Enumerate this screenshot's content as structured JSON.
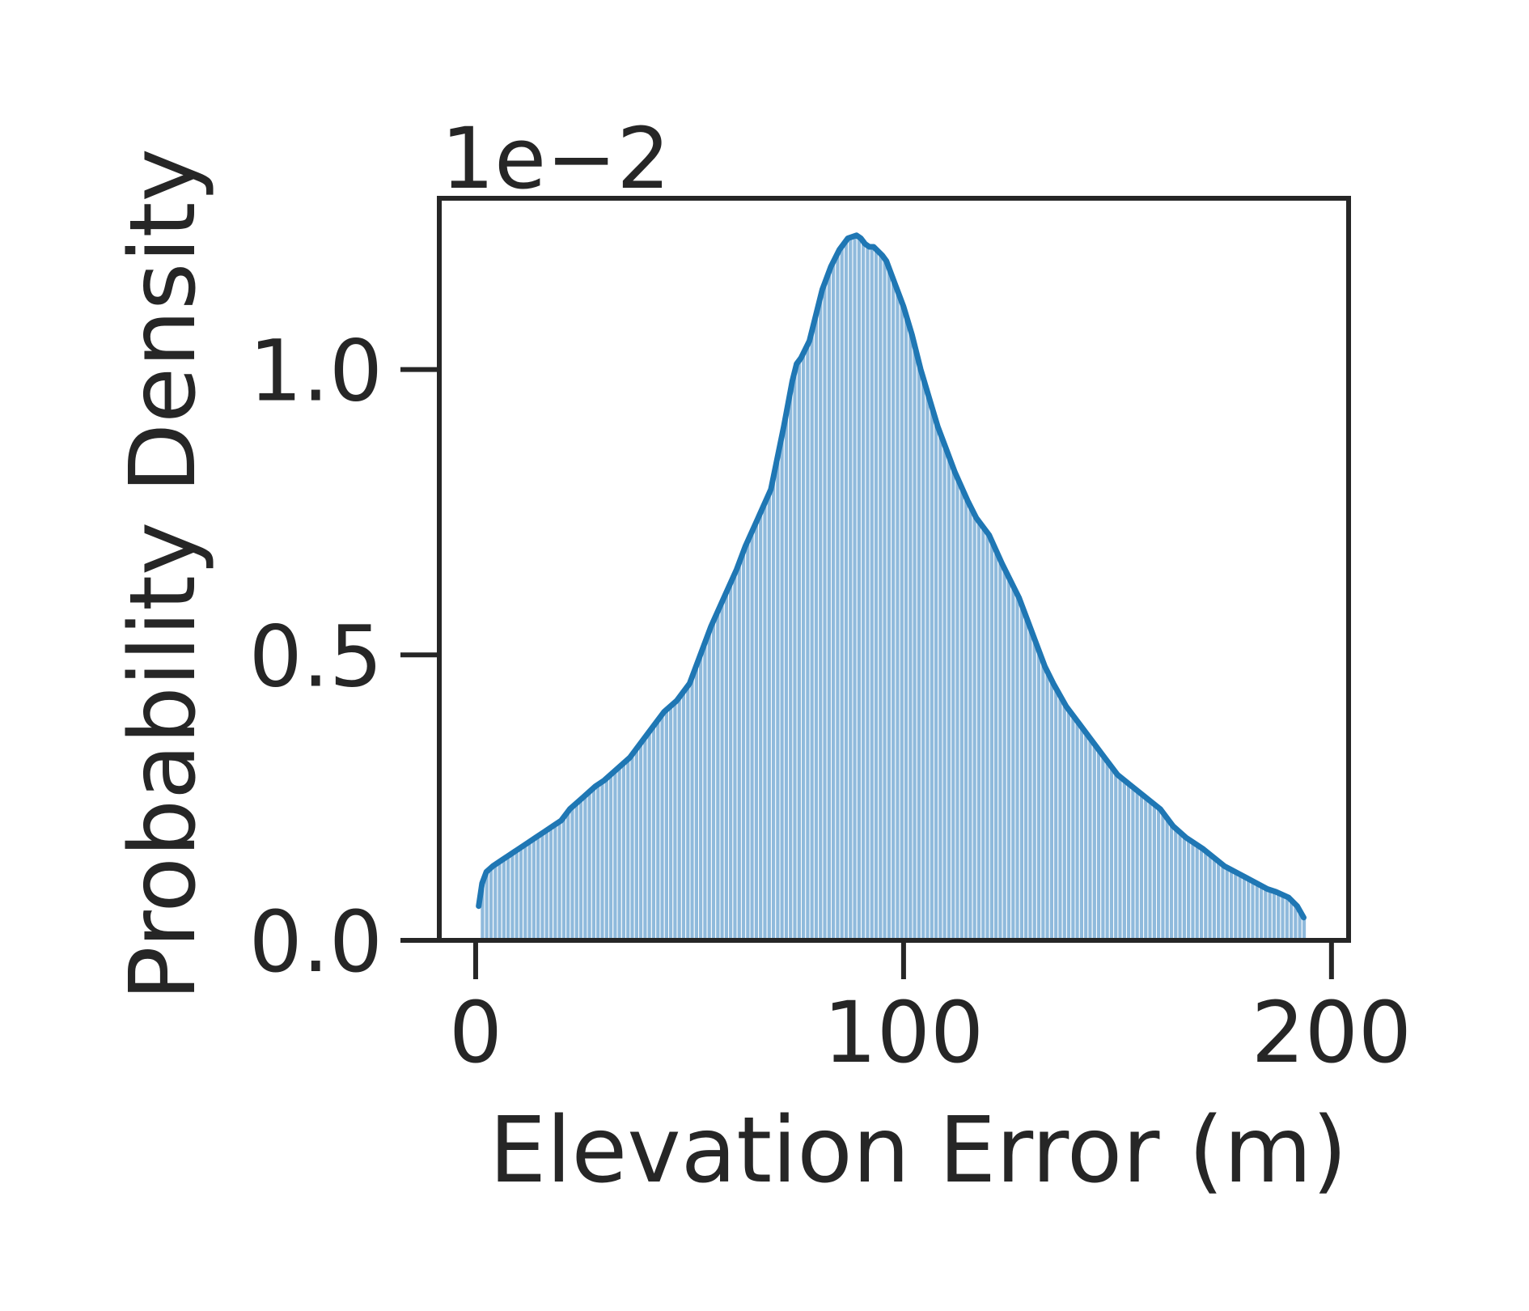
{
  "chart_data": {
    "type": "bar",
    "xlabel": "Elevation Error (m)",
    "ylabel": "Probability Density",
    "y_offset_label": "1e−2",
    "xlim": [
      -8.5,
      204
    ],
    "ylim": [
      0,
      1.3
    ],
    "x_ticks": [
      0,
      100,
      200
    ],
    "x_tick_labels": [
      "0",
      "100",
      "200"
    ],
    "y_ticks": [
      0.0,
      0.5,
      1.0
    ],
    "y_tick_labels": [
      "0.0",
      "0.5",
      "1.0"
    ],
    "grid": false,
    "legend": "none",
    "colors": {
      "bar_fill": "#8fbadc",
      "bar_edge": "#ffffff",
      "kde_line": "#1f77b4",
      "axes": "#262626"
    },
    "histogram": {
      "bin_start": 1.1,
      "bin_width": 1.0,
      "n_bins": 193
    },
    "kde": {
      "x": [
        0.7,
        1.5,
        2.5,
        4,
        6,
        8,
        10,
        12,
        14,
        16,
        18,
        20,
        22,
        25,
        28,
        30,
        33,
        36,
        40,
        44,
        47,
        50,
        52,
        55,
        58,
        61,
        63,
        66,
        69,
        72,
        74,
        75,
        76,
        78,
        80,
        81,
        83,
        85,
        87,
        89,
        90,
        91,
        92,
        93,
        95,
        96,
        97,
        98,
        99,
        100,
        102,
        104,
        106,
        108,
        110,
        112,
        115,
        117,
        120,
        123,
        127,
        129,
        131,
        133,
        135,
        138,
        141,
        144,
        147,
        150,
        155,
        160,
        163,
        166,
        170,
        175,
        180,
        185,
        187,
        190,
        192,
        193.5
      ],
      "y": [
        0.06,
        0.1,
        0.12,
        0.13,
        0.14,
        0.15,
        0.16,
        0.17,
        0.18,
        0.19,
        0.2,
        0.21,
        0.23,
        0.25,
        0.27,
        0.28,
        0.3,
        0.32,
        0.36,
        0.4,
        0.42,
        0.45,
        0.49,
        0.55,
        0.6,
        0.65,
        0.69,
        0.74,
        0.79,
        0.9,
        0.98,
        1.01,
        1.02,
        1.05,
        1.11,
        1.14,
        1.18,
        1.21,
        1.23,
        1.235,
        1.23,
        1.22,
        1.215,
        1.215,
        1.2,
        1.19,
        1.17,
        1.15,
        1.13,
        1.11,
        1.06,
        1.0,
        0.95,
        0.9,
        0.86,
        0.82,
        0.77,
        0.74,
        0.71,
        0.66,
        0.6,
        0.56,
        0.52,
        0.48,
        0.45,
        0.41,
        0.38,
        0.35,
        0.32,
        0.29,
        0.26,
        0.23,
        0.2,
        0.18,
        0.16,
        0.13,
        0.11,
        0.09,
        0.085,
        0.075,
        0.06,
        0.04
      ]
    }
  }
}
